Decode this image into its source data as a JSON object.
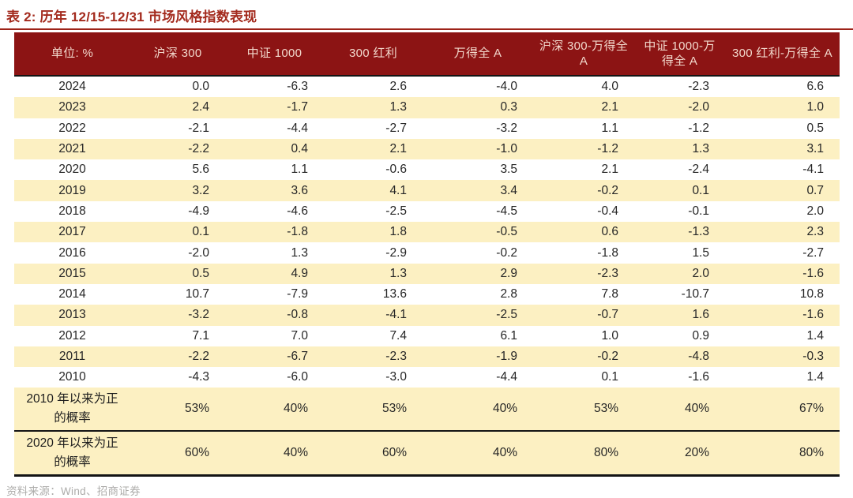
{
  "title": "表 2:  历年 12/15-12/31 市场风格指数表现",
  "source_note": "资料来源：Wind、招商证券",
  "colors": {
    "header_bg": "#8c1414",
    "header_text": "#f2d8cc",
    "title_red": "#a32a1d",
    "stripe_yellow": "#fcf0c2",
    "rule_black": "#141414",
    "footer_gray": "#adacaa"
  },
  "table": {
    "columns": [
      "单位: %",
      "沪深 300",
      "中证 1000",
      "300 红利",
      "万得全 A",
      "沪深 300-万得全 A",
      "中证 1000-万得全 A",
      "300 红利-万得全 A"
    ],
    "rows": [
      {
        "year": "2024",
        "values": [
          "0.0",
          "-6.3",
          "2.6",
          "-4.0",
          "4.0",
          "-2.3",
          "6.6"
        ]
      },
      {
        "year": "2023",
        "values": [
          "2.4",
          "-1.7",
          "1.3",
          "0.3",
          "2.1",
          "-2.0",
          "1.0"
        ]
      },
      {
        "year": "2022",
        "values": [
          "-2.1",
          "-4.4",
          "-2.7",
          "-3.2",
          "1.1",
          "-1.2",
          "0.5"
        ]
      },
      {
        "year": "2021",
        "values": [
          "-2.2",
          "0.4",
          "2.1",
          "-1.0",
          "-1.2",
          "1.3",
          "3.1"
        ]
      },
      {
        "year": "2020",
        "values": [
          "5.6",
          "1.1",
          "-0.6",
          "3.5",
          "2.1",
          "-2.4",
          "-4.1"
        ]
      },
      {
        "year": "2019",
        "values": [
          "3.2",
          "3.6",
          "4.1",
          "3.4",
          "-0.2",
          "0.1",
          "0.7"
        ]
      },
      {
        "year": "2018",
        "values": [
          "-4.9",
          "-4.6",
          "-2.5",
          "-4.5",
          "-0.4",
          "-0.1",
          "2.0"
        ]
      },
      {
        "year": "2017",
        "values": [
          "0.1",
          "-1.8",
          "1.8",
          "-0.5",
          "0.6",
          "-1.3",
          "2.3"
        ]
      },
      {
        "year": "2016",
        "values": [
          "-2.0",
          "1.3",
          "-2.9",
          "-0.2",
          "-1.8",
          "1.5",
          "-2.7"
        ]
      },
      {
        "year": "2015",
        "values": [
          "0.5",
          "4.9",
          "1.3",
          "2.9",
          "-2.3",
          "2.0",
          "-1.6"
        ]
      },
      {
        "year": "2014",
        "values": [
          "10.7",
          "-7.9",
          "13.6",
          "2.8",
          "7.8",
          "-10.7",
          "10.8"
        ]
      },
      {
        "year": "2013",
        "values": [
          "-3.2",
          "-0.8",
          "-4.1",
          "-2.5",
          "-0.7",
          "1.6",
          "-1.6"
        ]
      },
      {
        "year": "2012",
        "values": [
          "7.1",
          "7.0",
          "7.4",
          "6.1",
          "1.0",
          "0.9",
          "1.4"
        ]
      },
      {
        "year": "2011",
        "values": [
          "-2.2",
          "-6.7",
          "-2.3",
          "-1.9",
          "-0.2",
          "-4.8",
          "-0.3"
        ]
      },
      {
        "year": "2010",
        "values": [
          "-4.3",
          "-6.0",
          "-3.0",
          "-4.4",
          "0.1",
          "-1.6",
          "1.4"
        ]
      }
    ],
    "summary_rows": [
      {
        "label": "2010 年以来为正的概率",
        "values": [
          "53%",
          "40%",
          "53%",
          "40%",
          "53%",
          "40%",
          "67%"
        ]
      },
      {
        "label": "2020 年以来为正的概率",
        "values": [
          "60%",
          "40%",
          "60%",
          "40%",
          "80%",
          "20%",
          "80%"
        ]
      }
    ]
  }
}
